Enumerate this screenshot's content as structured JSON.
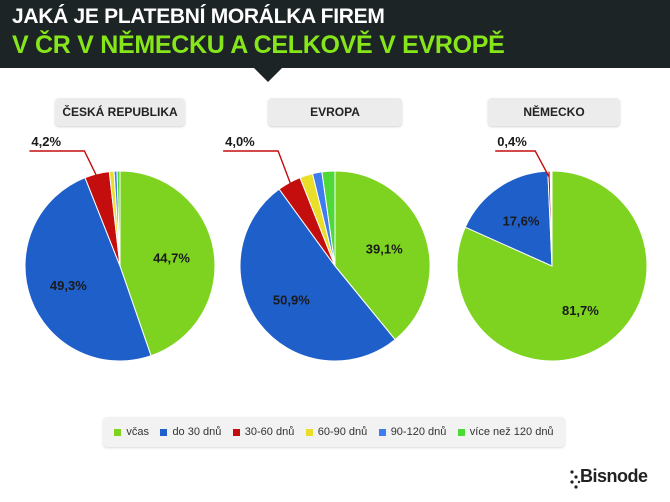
{
  "header": {
    "title_line1": "JAKÁ JE PLATEBNÍ MORÁLKA FIREM",
    "title_line2": "V ČR V NĚMECKU A CELKOVĚ V EVROPĚ",
    "bg_color": "#1d2426",
    "accent_color": "#86e619"
  },
  "legend": {
    "items": [
      {
        "label": "včas",
        "color": "#7ed321"
      },
      {
        "label": "do 30 dnů",
        "color": "#1f5fc9"
      },
      {
        "label": "30-60 dnů",
        "color": "#c40e0e"
      },
      {
        "label": "60-90 dnů",
        "color": "#e9df2a"
      },
      {
        "label": "90-120 dnů",
        "color": "#3e7cf0"
      },
      {
        "label": "více než 120 dnů",
        "color": "#4ed936"
      }
    ]
  },
  "logo": {
    "text": "Bisnode"
  },
  "chart_data": [
    {
      "type": "pie",
      "title": "ČESKÁ REPUBLIKA",
      "categories": [
        "včas",
        "do 30 dnů",
        "30-60 dnů",
        "60-90 dnů",
        "90-120 dnů",
        "více než 120 dnů"
      ],
      "values": [
        44.7,
        49.3,
        4.2,
        0.8,
        0.5,
        0.5
      ],
      "data_labels": [
        "44,7%",
        "49,3%",
        "4,2%",
        "",
        "",
        ""
      ]
    },
    {
      "type": "pie",
      "title": "EVROPA",
      "categories": [
        "včas",
        "do 30 dnů",
        "30-60 dnů",
        "60-90 dnů",
        "90-120 dnů",
        "více než 120 dnů"
      ],
      "values": [
        39.1,
        50.9,
        4.0,
        2.2,
        1.6,
        2.2
      ],
      "data_labels": [
        "39,1%",
        "50,9%",
        "4,0%",
        "",
        "",
        ""
      ]
    },
    {
      "type": "pie",
      "title": "NĚMECKO",
      "categories": [
        "včas",
        "do 30 dnů",
        "30-60 dnů",
        "60-90 dnů",
        "90-120 dnů",
        "více než 120 dnů"
      ],
      "values": [
        81.7,
        17.6,
        0.4,
        0.1,
        0.1,
        0.1
      ],
      "data_labels": [
        "81,7%",
        "17,6%",
        "0,4%",
        "",
        "",
        ""
      ]
    }
  ]
}
